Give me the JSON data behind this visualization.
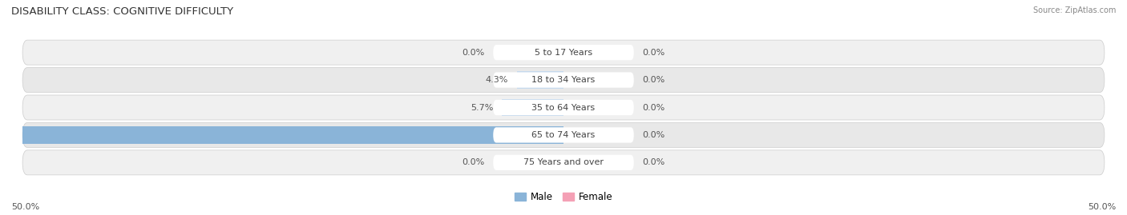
{
  "title": "DISABILITY CLASS: COGNITIVE DIFFICULTY",
  "source": "Source: ZipAtlas.com",
  "categories": [
    "5 to 17 Years",
    "18 to 34 Years",
    "35 to 64 Years",
    "65 to 74 Years",
    "75 Years and over"
  ],
  "male_values": [
    0.0,
    4.3,
    5.7,
    50.0,
    0.0
  ],
  "female_values": [
    0.0,
    0.0,
    0.0,
    0.0,
    0.0
  ],
  "male_color": "#8ab4d8",
  "female_color": "#f4a0b5",
  "male_color_light": "#c5d9ed",
  "female_color_light": "#f9cdd8",
  "row_color_odd": "#efefef",
  "row_color_even": "#e6e6e6",
  "axis_limit": 50.0,
  "bar_height": 0.62,
  "title_fontsize": 9.5,
  "label_fontsize": 8,
  "category_fontsize": 8,
  "tick_fontsize": 8,
  "legend_fontsize": 8.5
}
